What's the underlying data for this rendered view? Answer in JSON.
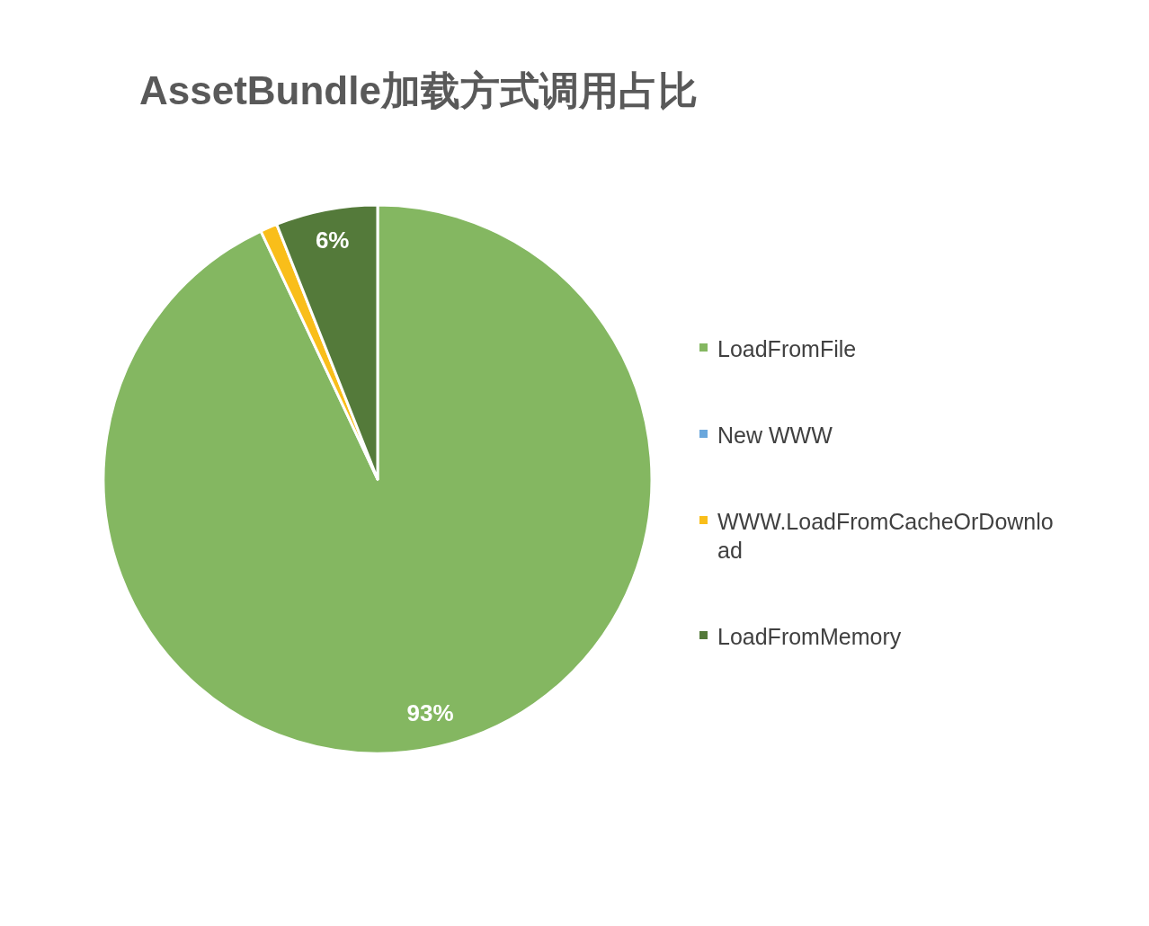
{
  "chart_data": {
    "type": "pie",
    "title": "AssetBundle加载方式调用占比",
    "categories": [
      "LoadFromFile",
      "New WWW",
      "WWW.LoadFromCacheOrDownload",
      "LoadFromMemory"
    ],
    "values": [
      93,
      0,
      1,
      6
    ],
    "colors": [
      "#84b761",
      "#6aa7dc",
      "#f9be1a",
      "#547a3a"
    ],
    "value_labels": [
      "93%",
      null,
      null,
      "6%"
    ],
    "legend": "right"
  }
}
